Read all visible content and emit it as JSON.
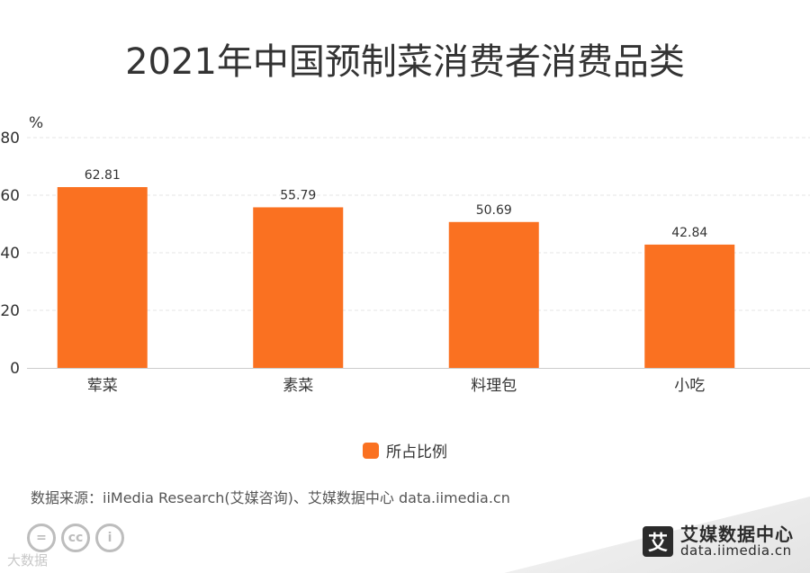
{
  "title": "2021年中国预制菜消费者消费品类",
  "chart_data": {
    "type": "bar",
    "title": "2021年中国预制菜消费者消费品类",
    "categories": [
      "荤菜",
      "素菜",
      "料理包",
      "小吃"
    ],
    "series": [
      {
        "name": "所占比例",
        "values": [
          62.81,
          55.79,
          50.69,
          42.84
        ],
        "color": "#fa7121"
      }
    ],
    "value_labels": [
      "62.81",
      "55.79",
      "50.69",
      "42.84"
    ],
    "ylabel": "%",
    "xlabel": "",
    "ylim": [
      0,
      80
    ],
    "yticks": [
      0,
      20,
      40,
      60,
      80
    ],
    "grid": true,
    "legend_position": "bottom-center"
  },
  "legend": {
    "label": "所占比例",
    "color": "#fa7121"
  },
  "source": "数据来源：iiMedia Research(艾媒咨询)、艾媒数据中心 data.iimedia.cn",
  "brand": {
    "logo_char": "艾",
    "name": "艾媒数据中心",
    "url": "data.iimedia.cn"
  },
  "watermark": "大数据",
  "license_icons": [
    "=",
    "cc",
    "i"
  ]
}
